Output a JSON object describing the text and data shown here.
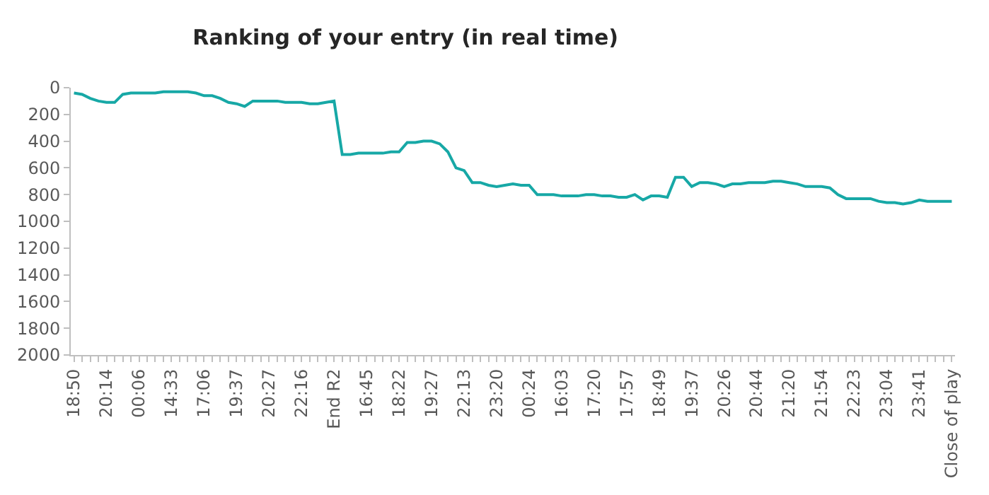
{
  "chart_data": {
    "type": "line",
    "title": "Ranking of your entry (in real time)",
    "categories": [
      "18:50",
      null,
      null,
      null,
      "20:14",
      null,
      null,
      null,
      "00:06",
      null,
      null,
      null,
      "14:33",
      null,
      null,
      null,
      "17:06",
      null,
      null,
      null,
      "19:37",
      null,
      null,
      null,
      "20:27",
      null,
      null,
      null,
      "22:16",
      null,
      null,
      null,
      "End R2",
      null,
      null,
      null,
      "16:45",
      null,
      null,
      null,
      "18:22",
      null,
      null,
      null,
      "19:27",
      null,
      null,
      null,
      "22:13",
      null,
      null,
      null,
      "23:20",
      null,
      null,
      null,
      "00:24",
      null,
      null,
      null,
      "16:03",
      null,
      null,
      null,
      "17:20",
      null,
      null,
      null,
      "17:57",
      null,
      null,
      null,
      "18:49",
      null,
      null,
      null,
      "19:37",
      null,
      null,
      null,
      "20:26",
      null,
      null,
      null,
      "20:44",
      null,
      null,
      null,
      "21:20",
      null,
      null,
      null,
      "21:54",
      null,
      null,
      null,
      "22:23",
      null,
      null,
      null,
      "23:04",
      null,
      null,
      null,
      "23:41",
      null,
      null,
      null,
      "Close of play"
    ],
    "series": [
      {
        "color": "#17a8a6",
        "values": [
          40,
          50,
          80,
          100,
          110,
          110,
          50,
          40,
          40,
          40,
          40,
          30,
          30,
          30,
          30,
          40,
          60,
          60,
          80,
          110,
          120,
          140,
          100,
          100,
          100,
          100,
          110,
          110,
          110,
          120,
          120,
          110,
          100,
          500,
          500,
          490,
          490,
          490,
          490,
          480,
          480,
          410,
          410,
          400,
          400,
          420,
          480,
          600,
          620,
          710,
          710,
          730,
          740,
          730,
          720,
          730,
          730,
          800,
          800,
          800,
          810,
          810,
          810,
          800,
          800,
          810,
          810,
          820,
          820,
          800,
          840,
          810,
          810,
          820,
          670,
          670,
          740,
          710,
          710,
          720,
          740,
          720,
          720,
          710,
          710,
          710,
          700,
          700,
          710,
          720,
          740,
          740,
          740,
          750,
          800,
          830,
          830,
          830,
          830,
          850,
          860,
          860,
          870,
          860,
          840,
          850,
          850,
          850,
          850
        ]
      }
    ],
    "ylim": [
      2000,
      0
    ],
    "yticks": [
      0,
      200,
      400,
      600,
      800,
      1000,
      1200,
      1400,
      1600,
      1800,
      2000
    ],
    "marker": "none",
    "line_style": "solid"
  }
}
